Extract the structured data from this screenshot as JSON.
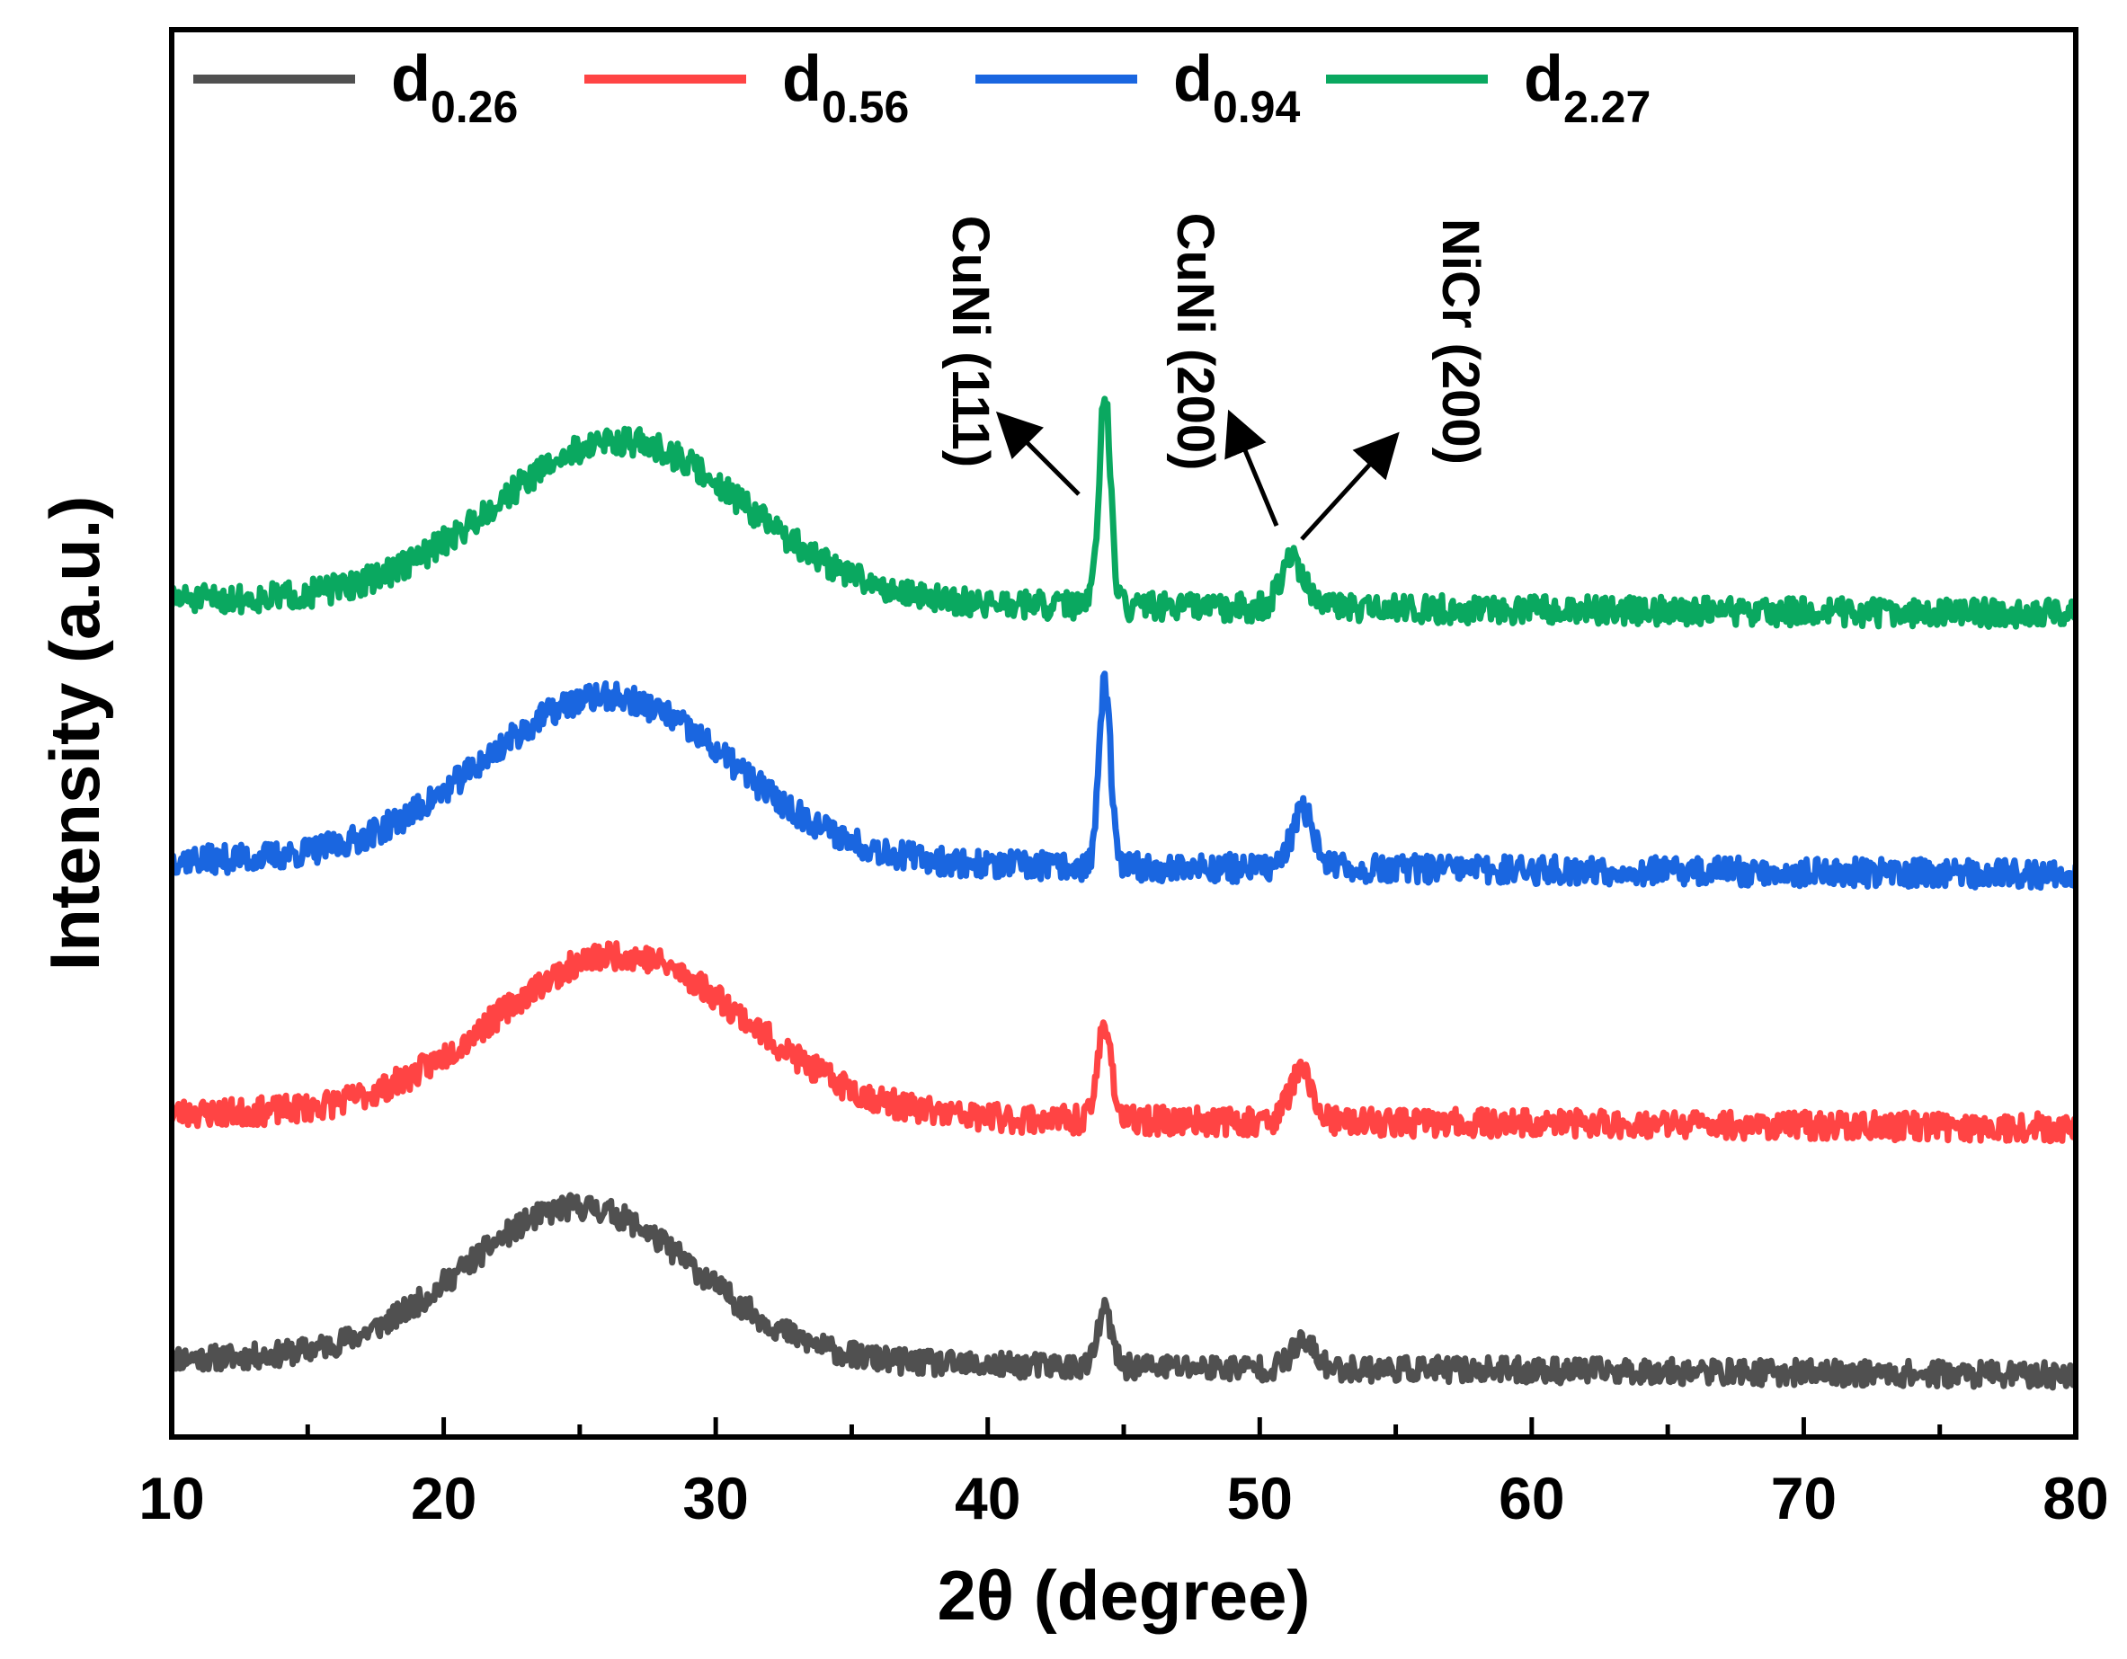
{
  "chart_data": {
    "type": "line",
    "title": "",
    "xlabel": "2θ (degree)",
    "ylabel": "Intensity (a.u.)",
    "xlim": [
      10,
      80
    ],
    "ylim": [
      0,
      1
    ],
    "x_ticks": [
      10,
      20,
      30,
      40,
      50,
      60,
      70,
      80
    ],
    "y_ticks": [],
    "grid": false,
    "legend_position": "top",
    "series": [
      {
        "name": "d",
        "sub": "0.26",
        "color": "#505050",
        "offset": 0.056,
        "hump_amp": 0.11,
        "hump_center": 25.0,
        "hump_width": 6.0,
        "peaks": [
          [
            44.3,
            0.04,
            0.35
          ],
          [
            51.6,
            0.018,
            0.6
          ]
        ],
        "noise": 0.009,
        "seed": 11,
        "tilt": -0.012
      },
      {
        "name": "d",
        "sub": "0.56",
        "color": "#ff4444",
        "offset": 0.23,
        "hump_amp": 0.115,
        "hump_center": 26.5,
        "hump_width": 6.5,
        "peaks": [
          [
            44.3,
            0.07,
            0.35
          ],
          [
            51.5,
            0.035,
            0.6
          ]
        ],
        "noise": 0.01,
        "seed": 23,
        "tilt": -0.01
      },
      {
        "name": "d",
        "sub": "0.94",
        "color": "#1a66e0",
        "offset": 0.41,
        "hump_amp": 0.118,
        "hump_center": 26.0,
        "hump_width": 6.5,
        "peaks": [
          [
            44.3,
            0.13,
            0.3
          ],
          [
            51.6,
            0.04,
            0.6
          ]
        ],
        "noise": 0.01,
        "seed": 37,
        "tilt": -0.01
      },
      {
        "name": "d",
        "sub": "2.27",
        "color": "#0aa860",
        "offset": 0.595,
        "hump_amp": 0.115,
        "hump_center": 26.5,
        "hump_width": 6.5,
        "peaks": [
          [
            44.3,
            0.15,
            0.3
          ],
          [
            51.2,
            0.035,
            0.6
          ]
        ],
        "noise": 0.01,
        "seed": 51,
        "tilt": -0.01
      }
    ],
    "annotations": [
      {
        "text": "CuNi (111)",
        "x_data": 44.3,
        "y_data": 0.7
      },
      {
        "text": "CuNi (200)",
        "x_data": 50.5,
        "y_data": 0.63
      },
      {
        "text": "NiCr (200)",
        "x_data": 51.3,
        "y_data": 0.63
      }
    ]
  }
}
